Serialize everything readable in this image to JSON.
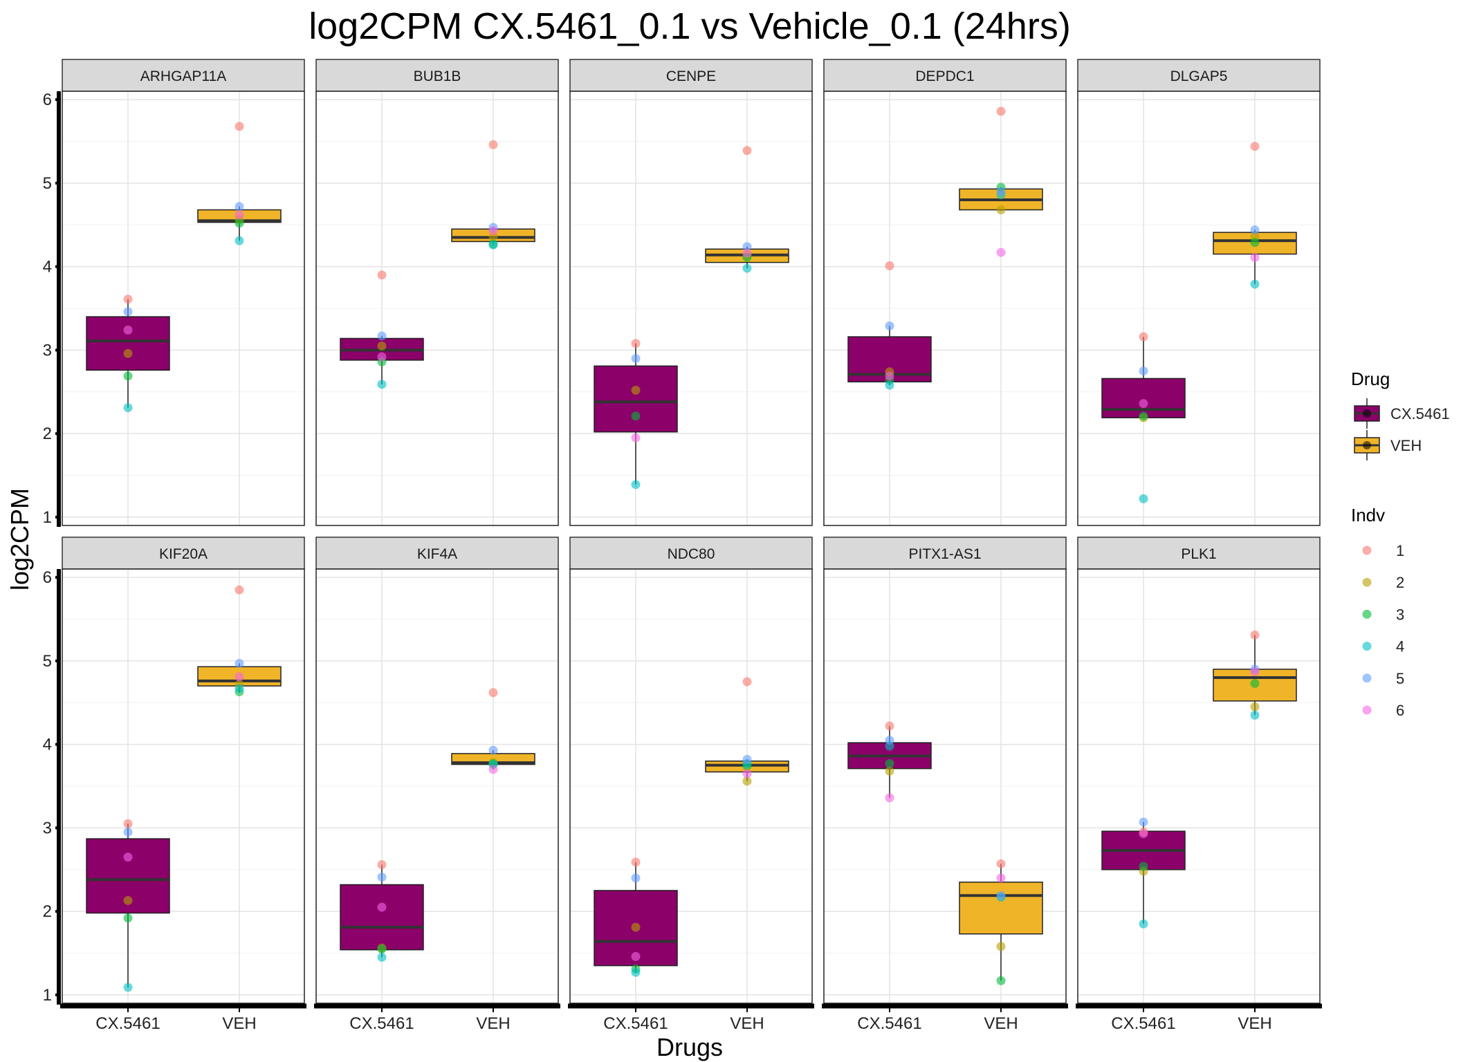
{
  "chart_data": {
    "type": "box",
    "title": "log2CPM CX.5461_0.1 vs Vehicle_0.1 (24hrs)",
    "xlabel": "Drugs",
    "ylabel": "log2CPM",
    "categories": [
      "CX.5461",
      "VEH"
    ],
    "ylim": [
      0.9,
      6.1
    ],
    "yticks": [
      1,
      2,
      3,
      4,
      5,
      6
    ],
    "grid": true,
    "legend_position": "right",
    "drug_legend": {
      "title": "Drug",
      "items": [
        {
          "label": "CX.5461",
          "color": "#8B0069"
        },
        {
          "label": "VEH",
          "color": "#F0B429"
        }
      ]
    },
    "indv_legend": {
      "title": "Indv",
      "items": [
        {
          "label": "1",
          "color": "#F8766D"
        },
        {
          "label": "2",
          "color": "#B79F00"
        },
        {
          "label": "3",
          "color": "#00BA38"
        },
        {
          "label": "4",
          "color": "#00BFC4"
        },
        {
          "label": "5",
          "color": "#619CFF"
        },
        {
          "label": "6",
          "color": "#F564E3"
        }
      ]
    },
    "panels": [
      {
        "gene": "ARHGAP11A",
        "boxes": [
          {
            "q1": 2.76,
            "median": 3.11,
            "q3": 3.4,
            "whisker_low": 2.31,
            "whisker_high": 3.61,
            "points": [
              3.61,
              2.96,
              2.69,
              2.31,
              3.46,
              3.24
            ]
          },
          {
            "q1": 4.53,
            "median": 4.55,
            "q3": 4.68,
            "whisker_low": 4.31,
            "whisker_high": 4.72,
            "points": [
              5.68,
              4.56,
              4.52,
              4.31,
              4.72,
              4.62
            ]
          }
        ]
      },
      {
        "gene": "BUB1B",
        "boxes": [
          {
            "q1": 2.88,
            "median": 3.0,
            "q3": 3.14,
            "whisker_low": 2.59,
            "whisker_high": 3.17,
            "points": [
              3.9,
              3.05,
              2.86,
              2.59,
              3.17,
              2.92
            ]
          },
          {
            "q1": 4.3,
            "median": 4.35,
            "q3": 4.45,
            "whisker_low": 4.26,
            "whisker_high": 4.47,
            "points": [
              5.46,
              4.36,
              4.27,
              4.26,
              4.47,
              4.43
            ]
          }
        ]
      },
      {
        "gene": "CENPE",
        "boxes": [
          {
            "q1": 2.02,
            "median": 2.38,
            "q3": 2.81,
            "whisker_low": 1.39,
            "whisker_high": 3.08,
            "points": [
              3.08,
              2.52,
              2.21,
              1.39,
              2.9,
              1.95
            ]
          },
          {
            "q1": 4.05,
            "median": 4.14,
            "q3": 4.21,
            "whisker_low": 3.98,
            "whisker_high": 4.24,
            "points": [
              5.39,
              4.13,
              4.11,
              3.98,
              4.24,
              4.16
            ]
          }
        ]
      },
      {
        "gene": "DEPDC1",
        "boxes": [
          {
            "q1": 2.62,
            "median": 2.71,
            "q3": 3.16,
            "whisker_low": 2.58,
            "whisker_high": 3.29,
            "points": [
              4.01,
              2.74,
              2.64,
              2.58,
              3.29,
              2.69
            ]
          },
          {
            "q1": 4.68,
            "median": 4.8,
            "q3": 4.93,
            "whisker_low": 4.67,
            "whisker_high": 4.95,
            "points": [
              5.86,
              4.68,
              4.95,
              4.86,
              4.9,
              4.17
            ]
          }
        ]
      },
      {
        "gene": "DLGAP5",
        "boxes": [
          {
            "q1": 2.19,
            "median": 2.29,
            "q3": 2.66,
            "whisker_low": 2.19,
            "whisker_high": 3.16,
            "points": [
              3.16,
              2.19,
              2.21,
              1.22,
              2.75,
              2.36
            ]
          },
          {
            "q1": 4.15,
            "median": 4.31,
            "q3": 4.41,
            "whisker_low": 3.79,
            "whisker_high": 4.44,
            "points": [
              5.44,
              4.36,
              4.29,
              3.79,
              4.44,
              4.11
            ]
          }
        ]
      },
      {
        "gene": "KIF20A",
        "boxes": [
          {
            "q1": 1.98,
            "median": 2.38,
            "q3": 2.87,
            "whisker_low": 1.09,
            "whisker_high": 3.05,
            "points": [
              3.05,
              2.13,
              1.92,
              1.09,
              2.95,
              2.65
            ]
          },
          {
            "q1": 4.7,
            "median": 4.76,
            "q3": 4.93,
            "whisker_low": 4.62,
            "whisker_high": 4.97,
            "points": [
              5.85,
              4.72,
              4.63,
              4.67,
              4.97,
              4.81
            ]
          }
        ]
      },
      {
        "gene": "KIF4A",
        "boxes": [
          {
            "q1": 1.54,
            "median": 1.81,
            "q3": 2.32,
            "whisker_low": 1.45,
            "whisker_high": 2.56,
            "points": [
              2.56,
              1.56,
              1.55,
              1.45,
              2.41,
              2.05
            ]
          },
          {
            "q1": 3.76,
            "median": 3.78,
            "q3": 3.89,
            "whisker_low": 3.7,
            "whisker_high": 3.93,
            "points": [
              4.62,
              3.78,
              3.77,
              3.76,
              3.93,
              3.7
            ]
          }
        ]
      },
      {
        "gene": "NDC80",
        "boxes": [
          {
            "q1": 1.35,
            "median": 1.64,
            "q3": 2.25,
            "whisker_low": 1.27,
            "whisker_high": 2.59,
            "points": [
              2.59,
              1.81,
              1.31,
              1.27,
              2.4,
              1.46
            ]
          },
          {
            "q1": 3.67,
            "median": 3.75,
            "q3": 3.8,
            "whisker_low": 3.56,
            "whisker_high": 3.82,
            "points": [
              4.75,
              3.56,
              3.74,
              3.77,
              3.82,
              3.65
            ]
          }
        ]
      },
      {
        "gene": "PITX1-AS1",
        "boxes": [
          {
            "q1": 3.71,
            "median": 3.86,
            "q3": 4.02,
            "whisker_low": 3.36,
            "whisker_high": 4.22,
            "points": [
              4.22,
              3.68,
              3.77,
              3.98,
              4.05,
              3.36
            ]
          },
          {
            "q1": 1.73,
            "median": 2.19,
            "q3": 2.35,
            "whisker_low": 1.17,
            "whisker_high": 2.57,
            "points": [
              2.57,
              1.58,
              1.17,
              2.17,
              2.19,
              2.4
            ]
          }
        ]
      },
      {
        "gene": "PLK1",
        "boxes": [
          {
            "q1": 2.5,
            "median": 2.73,
            "q3": 2.96,
            "whisker_low": 1.85,
            "whisker_high": 3.07,
            "points": [
              2.95,
              2.48,
              2.54,
              1.85,
              3.07,
              2.93
            ]
          },
          {
            "q1": 4.52,
            "median": 4.8,
            "q3": 4.9,
            "whisker_low": 4.35,
            "whisker_high": 5.31,
            "points": [
              5.31,
              4.45,
              4.73,
              4.35,
              4.9,
              4.87
            ]
          }
        ]
      }
    ]
  }
}
